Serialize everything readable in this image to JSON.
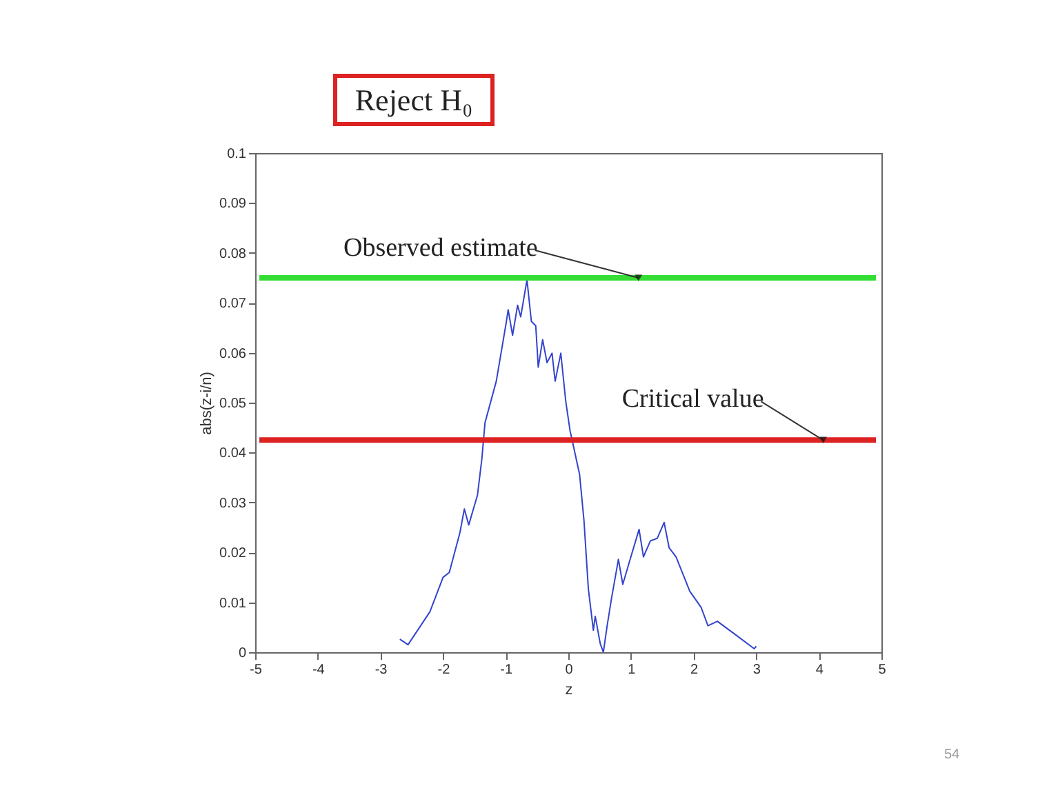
{
  "chart_data": {
    "type": "line",
    "title": "Reject H₀",
    "xlabel": "z",
    "ylabel": "abs(z-i/n)",
    "xlim": [
      -5,
      5
    ],
    "xticks": [
      -5,
      -4,
      -3,
      -2,
      -1,
      0,
      1,
      2,
      3,
      4,
      5
    ],
    "ylim": [
      0,
      0.1
    ],
    "yticks": [
      0,
      0.01,
      0.02,
      0.03,
      0.04,
      0.05,
      0.06,
      0.07,
      0.08,
      0.09,
      0.1
    ],
    "grid": false,
    "legend": false,
    "marker": "none",
    "line_style": "solid",
    "series": [
      {
        "color": "#3344cc",
        "x": [
          -2.69,
          -2.56,
          -2.21,
          -2.0,
          -1.9,
          -1.73,
          -1.66,
          -1.59,
          -1.45,
          -1.38,
          -1.33,
          -1.15,
          -1.0,
          -0.96,
          -0.89,
          -0.81,
          -0.76,
          -0.66,
          -0.59,
          -0.52,
          -0.48,
          -0.41,
          -0.34,
          -0.26,
          -0.21,
          -0.12,
          -0.04,
          0.03,
          0.07,
          0.18,
          0.25,
          0.32,
          0.4,
          0.43,
          0.51,
          0.56,
          0.62,
          0.69,
          0.8,
          0.87,
          1.02,
          1.13,
          1.2,
          1.31,
          1.42,
          1.53,
          1.61,
          1.72,
          1.94,
          2.12,
          2.23,
          2.38,
          2.67,
          2.97,
          3.0
        ],
        "values": [
          0.0026,
          0.0015,
          0.0081,
          0.015,
          0.016,
          0.024,
          0.0287,
          0.0255,
          0.0315,
          0.0388,
          0.046,
          0.0543,
          0.0654,
          0.0686,
          0.0635,
          0.0695,
          0.0672,
          0.0746,
          0.0663,
          0.0654,
          0.0571,
          0.0626,
          0.058,
          0.0599,
          0.0543,
          0.0599,
          0.0502,
          0.0442,
          0.042,
          0.0356,
          0.0264,
          0.0127,
          0.0044,
          0.0072,
          0.0017,
          0.0,
          0.0053,
          0.0108,
          0.0186,
          0.0136,
          0.02,
          0.0246,
          0.0191,
          0.0223,
          0.0228,
          0.026,
          0.0209,
          0.0191,
          0.0122,
          0.009,
          0.0053,
          0.0062,
          0.0035,
          0.0007,
          0.0012
        ]
      }
    ],
    "ref_lines": [
      {
        "axis": "y",
        "value": 0.075,
        "label": "Observed estimate",
        "color": "#33dd33",
        "line_style": "solid"
      },
      {
        "axis": "y",
        "value": 0.0425,
        "label": "Critical value",
        "color": "#dd2222",
        "line_style": "solid"
      }
    ],
    "annotations": [
      "54"
    ]
  }
}
